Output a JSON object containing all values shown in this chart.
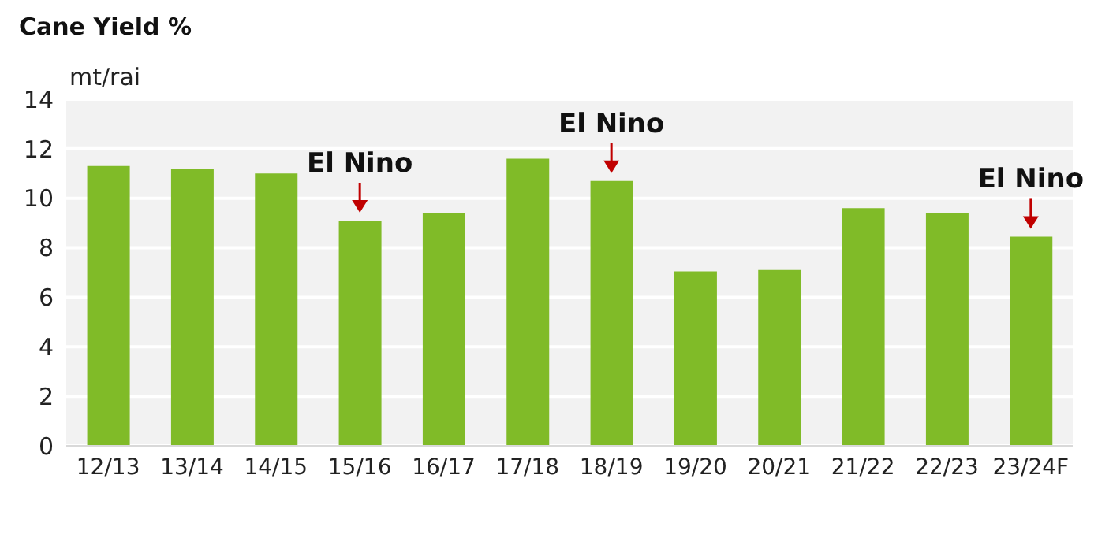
{
  "chart_data": {
    "type": "bar",
    "title": "Cane Yield %",
    "ylabel": "mt/rai",
    "categories": [
      "12/13",
      "13/14",
      "14/15",
      "15/16",
      "16/17",
      "17/18",
      "18/19",
      "19/20",
      "20/21",
      "21/22",
      "22/23",
      "23/24F"
    ],
    "values": [
      11.3,
      11.2,
      11.0,
      9.1,
      9.4,
      11.6,
      10.7,
      7.05,
      7.1,
      9.6,
      9.4,
      8.45
    ],
    "color": "#80bb28",
    "ylim": [
      0,
      14
    ],
    "yticks": [
      0,
      2,
      4,
      6,
      8,
      10,
      12,
      14
    ],
    "grid": "y",
    "annotations": [
      {
        "text": "El Nino",
        "x": "15/16",
        "y": 9.1
      },
      {
        "text": "El Nino",
        "x": "18/19",
        "y": 10.7
      },
      {
        "text": "El Nino",
        "x": "23/24F",
        "y": 8.45
      }
    ]
  }
}
